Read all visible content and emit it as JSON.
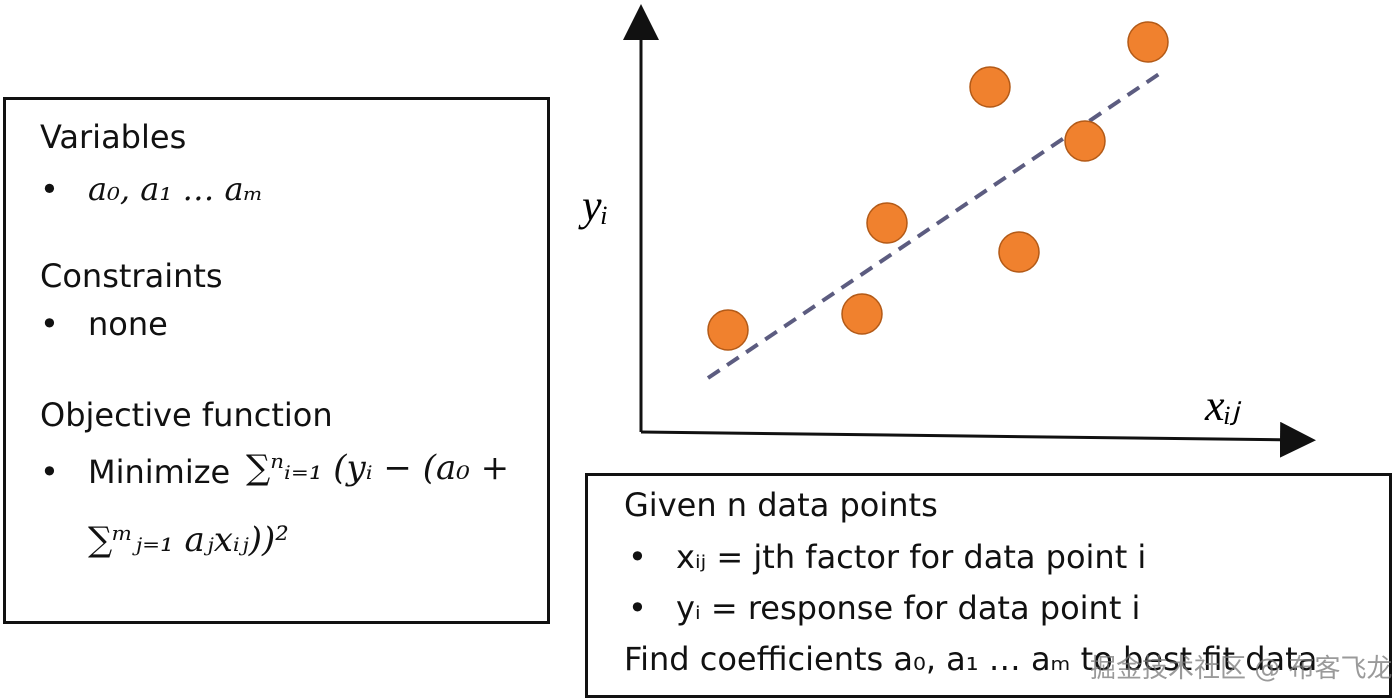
{
  "variables": {
    "heading": "Variables",
    "items": [
      "a₀, a₁ … aₘ"
    ]
  },
  "constraints": {
    "heading": "Constraints",
    "items": [
      "none"
    ]
  },
  "objective": {
    "heading": "Objective function",
    "prefix": "Minimize",
    "formula_line1": "∑ⁿᵢ₌₁ (yᵢ − (a₀ +",
    "formula_line2": "∑ᵐⱼ₌₁ aⱼxᵢⱼ))²"
  },
  "plot": {
    "y_label": "yᵢ",
    "x_label": "xᵢⱼ"
  },
  "given": {
    "heading": "Given n data points",
    "items": [
      "xᵢⱼ = jth factor for data point i",
      "yᵢ = response for data point i"
    ],
    "footer": "Find coefficients a₀, a₁ … aₘ to best fit data"
  },
  "watermark": "掘金技术社区 @ 布客飞龙"
}
